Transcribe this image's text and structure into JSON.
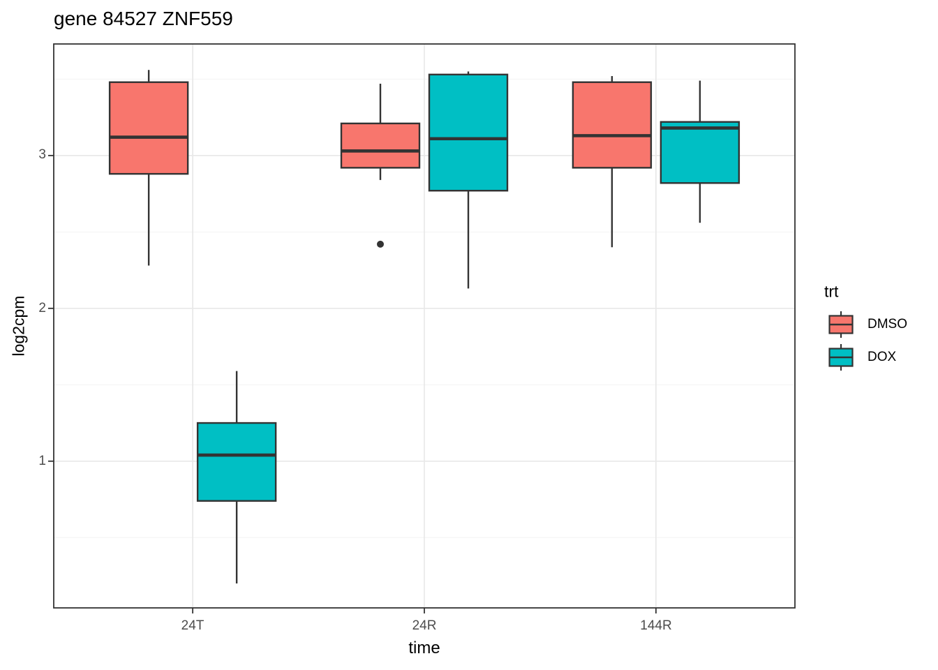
{
  "title": "gene 84527 ZNF559",
  "chart_data": {
    "type": "boxplot",
    "title": "gene 84527 ZNF559",
    "xlabel": "time",
    "ylabel": "log2cpm",
    "categories": [
      "24T",
      "24R",
      "144R"
    ],
    "ylim": [
      0.04,
      3.73
    ],
    "y_major_ticks": [
      1,
      2,
      3
    ],
    "y_minor_ticks": [
      0.5,
      1.5,
      2.5,
      3.5
    ],
    "grid": "horizontal major+minor, vertical major at category centers",
    "legend_position": "right",
    "series": [
      {
        "name": "DMSO",
        "color": "#F8766D",
        "boxes": [
          {
            "category": "24T",
            "whisker_low": 2.28,
            "q1": 2.88,
            "median": 3.12,
            "q3": 3.48,
            "whisker_high": 3.56,
            "outliers": []
          },
          {
            "category": "24R",
            "whisker_low": 2.84,
            "q1": 2.92,
            "median": 3.03,
            "q3": 3.21,
            "whisker_high": 3.47,
            "outliers": [
              2.42
            ]
          },
          {
            "category": "144R",
            "whisker_low": 2.4,
            "q1": 2.92,
            "median": 3.13,
            "q3": 3.48,
            "whisker_high": 3.52,
            "outliers": []
          }
        ]
      },
      {
        "name": "DOX",
        "color": "#00BFC4",
        "boxes": [
          {
            "category": "24T",
            "whisker_low": 0.2,
            "q1": 0.74,
            "median": 1.04,
            "q3": 1.25,
            "whisker_high": 1.59,
            "outliers": []
          },
          {
            "category": "24R",
            "whisker_low": 2.13,
            "q1": 2.77,
            "median": 3.11,
            "q3": 3.53,
            "whisker_high": 3.55,
            "outliers": []
          },
          {
            "category": "144R",
            "whisker_low": 2.56,
            "q1": 2.82,
            "median": 3.18,
            "q3": 3.22,
            "whisker_high": 3.49,
            "outliers": []
          }
        ]
      }
    ]
  },
  "axes": {
    "y_title": "log2cpm",
    "x_title": "time",
    "y_tick_labels": [
      "3",
      "2",
      "1"
    ],
    "x_tick_labels": [
      "24T",
      "24R",
      "144R"
    ]
  },
  "legend": {
    "title": "trt",
    "items": [
      {
        "label": "DMSO",
        "color": "#F8766D"
      },
      {
        "label": "DOX",
        "color": "#00BFC4"
      }
    ]
  },
  "colors": {
    "box_stroke": "#333333",
    "outlier": "#333333",
    "panel_border": "#333333",
    "grid_major": "#E8E8E8",
    "grid_minor": "#F3F3F3",
    "tick_label": "#4d4d4d",
    "background": "#ffffff"
  }
}
